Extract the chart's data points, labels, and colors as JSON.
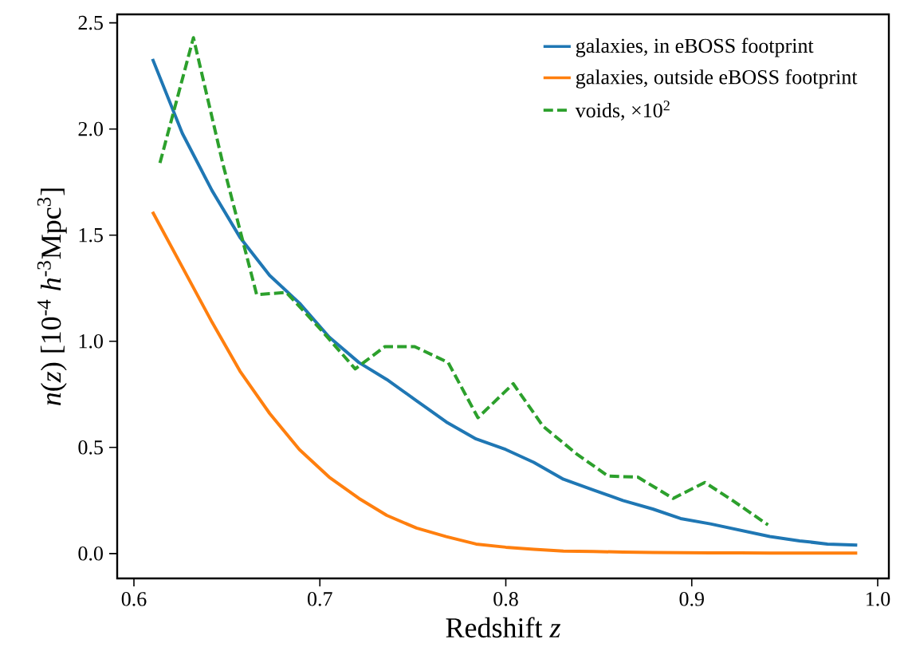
{
  "chart_data": {
    "type": "line",
    "xlabel": "Redshift *z*",
    "ylabel": "*n*(*z*) [10$^{-4}$ *h*$^{-3}$Mpc$^{3}$]",
    "xlim": [
      0.591,
      1.006
    ],
    "ylim": [
      -0.117,
      2.54
    ],
    "xticks": [
      {
        "value": 0.6,
        "label": "0.6"
      },
      {
        "value": 0.7,
        "label": "0.7"
      },
      {
        "value": 0.8,
        "label": "0.8"
      },
      {
        "value": 0.9,
        "label": "0.9"
      },
      {
        "value": 1.0,
        "label": "1.0"
      }
    ],
    "yticks": [
      {
        "value": 0.0,
        "label": "0.0"
      },
      {
        "value": 0.5,
        "label": "0.5"
      },
      {
        "value": 1.0,
        "label": "1.0"
      },
      {
        "value": 1.5,
        "label": "1.5"
      },
      {
        "value": 2.0,
        "label": "2.0"
      },
      {
        "value": 2.5,
        "label": "2.5"
      }
    ],
    "legend": "top right",
    "series": [
      {
        "name": "galaxies, in eBOSS footprint",
        "color": "#1f77b4",
        "line_style": "solid",
        "x": [
          0.61,
          0.626,
          0.642,
          0.657,
          0.673,
          0.689,
          0.705,
          0.721,
          0.736,
          0.752,
          0.768,
          0.784,
          0.8,
          0.815,
          0.831,
          0.847,
          0.863,
          0.879,
          0.894,
          0.91,
          0.926,
          0.942,
          0.958,
          0.973,
          0.989
        ],
        "values": [
          2.33,
          1.98,
          1.71,
          1.49,
          1.31,
          1.18,
          1.02,
          0.9,
          0.82,
          0.72,
          0.62,
          0.54,
          0.49,
          0.43,
          0.35,
          0.3,
          0.25,
          0.21,
          0.165,
          0.14,
          0.11,
          0.08,
          0.06,
          0.045,
          0.04
        ]
      },
      {
        "name": "galaxies, outside eBOSS footprint",
        "color": "#ff7f0e",
        "line_style": "solid",
        "x": [
          0.61,
          0.626,
          0.642,
          0.657,
          0.673,
          0.689,
          0.705,
          0.721,
          0.736,
          0.752,
          0.768,
          0.784,
          0.8,
          0.815,
          0.831,
          0.847,
          0.863,
          0.879,
          0.894,
          0.91,
          0.926,
          0.942,
          0.958,
          0.973,
          0.989
        ],
        "values": [
          1.61,
          1.35,
          1.09,
          0.86,
          0.66,
          0.49,
          0.36,
          0.26,
          0.18,
          0.12,
          0.08,
          0.045,
          0.03,
          0.02,
          0.012,
          0.01,
          0.007,
          0.005,
          0.004,
          0.003,
          0.003,
          0.002,
          0.002,
          0.002,
          0.002
        ]
      },
      {
        "name": "voids, ×10$^{2}$",
        "color": "#2ca02c",
        "line_style": "dashed",
        "x": [
          0.614,
          0.632,
          0.648,
          0.666,
          0.682,
          0.7,
          0.719,
          0.735,
          0.751,
          0.769,
          0.785,
          0.804,
          0.82,
          0.838,
          0.855,
          0.871,
          0.89,
          0.907,
          0.922,
          0.941
        ],
        "values": [
          1.84,
          2.43,
          1.83,
          1.22,
          1.23,
          1.06,
          0.87,
          0.975,
          0.975,
          0.9,
          0.64,
          0.8,
          0.6,
          0.47,
          0.365,
          0.36,
          0.26,
          0.335,
          0.25,
          0.135
        ]
      }
    ]
  }
}
